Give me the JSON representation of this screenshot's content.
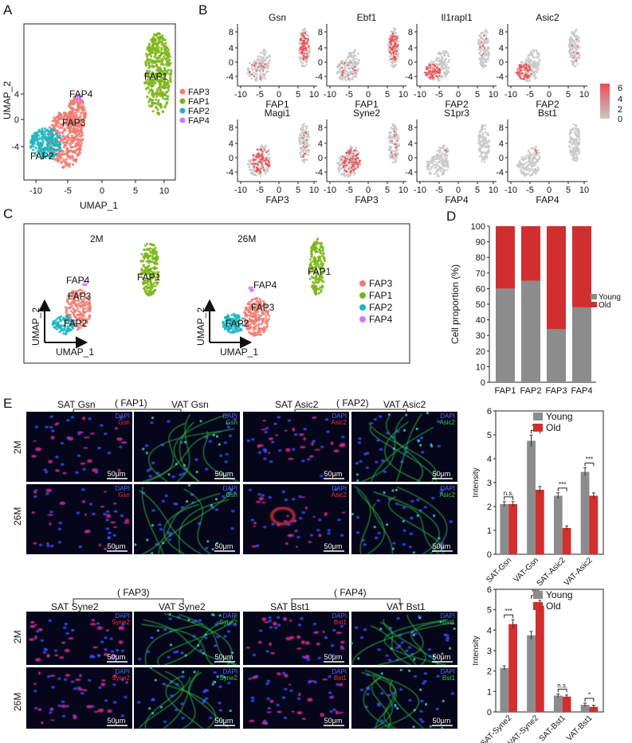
{
  "panels": {
    "A": "A",
    "B": "B",
    "C": "C",
    "D": "D",
    "E": "E"
  },
  "colors": {
    "FAP1": "#7cb518",
    "FAP2": "#1bb5be",
    "FAP3": "#f07b72",
    "FAP4": "#c77cff",
    "grey": "#c8c8c8",
    "express": "#f04b50",
    "young": "#8c8c8c",
    "old": "#d12f2f"
  },
  "panelA": {
    "xlabel": "UMAP_1",
    "ylabel": "UMAP_2",
    "xticks": [
      "-10",
      "-5",
      "0",
      "5",
      "10"
    ],
    "yticks": [
      "4",
      "0",
      "-4"
    ],
    "labels": [
      "FAP1",
      "FAP3",
      "FAP2",
      "FAP4"
    ],
    "legend": [
      "FAP3",
      "FAP1",
      "FAP2",
      "FAP4"
    ]
  },
  "panelB": {
    "genes": [
      {
        "name": "Gsn",
        "xlabel": "FAP1",
        "hot": "FAP1"
      },
      {
        "name": "Ebf1",
        "xlabel": "FAP1",
        "hot": "FAP1"
      },
      {
        "name": "Il1rapl1",
        "xlabel": "FAP2",
        "hot": "FAP2"
      },
      {
        "name": "Asic2",
        "xlabel": "FAP2",
        "hot": "FAP2"
      },
      {
        "name": "Magi1",
        "xlabel": "FAP3",
        "hot": "FAP3"
      },
      {
        "name": "Syne2",
        "xlabel": "FAP3",
        "hot": "FAP3"
      },
      {
        "name": "S1pr3",
        "xlabel": "FAP4",
        "hot": "none"
      },
      {
        "name": "Bst1",
        "xlabel": "FAP4",
        "hot": "none"
      }
    ],
    "xticks": [
      "-10",
      "-5",
      "0",
      "5",
      "10"
    ],
    "yticks": [
      "8",
      "4",
      "0",
      "-4"
    ],
    "colorbar": [
      "6",
      "4",
      "2",
      "0"
    ]
  },
  "panelC": {
    "groups": [
      "2M",
      "26M"
    ],
    "labels": [
      "FAP4",
      "FAP3",
      "FAP2",
      "FAP1"
    ],
    "legend": [
      "FAP3",
      "FAP1",
      "FAP2",
      "FAP4"
    ],
    "xlabel": "UMAP_1",
    "ylabel": "UMAP_2"
  },
  "panelE": {
    "row1_titles": [
      "( FAP1)",
      "( FAP2)"
    ],
    "row1_sub": [
      "SAT Gsn",
      "VAT Gsn",
      "SAT Asic2",
      "VAT Asic2"
    ],
    "row2_titles": [
      "( FAP3)",
      "( FAP4)"
    ],
    "row2_sub": [
      "SAT Syne2",
      "VAT Syne2",
      "SAT Bst1",
      "VAT Bst1"
    ],
    "ages": [
      "2M",
      "26M"
    ],
    "dapi": "DAPI",
    "markers_row1": [
      "Gsn",
      "Gsn",
      "Asic2",
      "Asic2"
    ],
    "markers_row2": [
      "Syne2",
      "Syne2",
      "Bst1",
      "Bst1"
    ],
    "scale": "50μm"
  },
  "chart_data": [
    {
      "type": "bar",
      "panel": "D",
      "categories": [
        "FAP1",
        "FAP2",
        "FAP3",
        "FAP4"
      ],
      "series": [
        {
          "name": "Young",
          "values": [
            60,
            65,
            34,
            48
          ]
        },
        {
          "name": "Old",
          "values": [
            40,
            35,
            66,
            52
          ]
        }
      ],
      "stacked": true,
      "ylabel": "Cell proportion (%)",
      "ylim": [
        0,
        100
      ],
      "yticks": [
        "0",
        "10",
        "20",
        "30",
        "40",
        "50",
        "60",
        "70",
        "80",
        "90",
        "100"
      ],
      "legend": "right"
    },
    {
      "type": "bar",
      "panel": "E-top",
      "categories": [
        "SAT-Gsn",
        "VAT-Gsn",
        "SAT-Asic2",
        "VAT-Asic2"
      ],
      "series": [
        {
          "name": "Young",
          "values": [
            2.1,
            4.75,
            2.45,
            3.45
          ]
        },
        {
          "name": "Old",
          "values": [
            2.1,
            2.7,
            1.1,
            2.45
          ]
        }
      ],
      "significance": [
        "n.s.",
        "***",
        "***",
        "***"
      ],
      "ylabel": "Intensity",
      "ylim": [
        0,
        6
      ],
      "yticks": [
        "0",
        "1",
        "2",
        "3",
        "4",
        "5",
        "6"
      ],
      "legend": "top-right"
    },
    {
      "type": "bar",
      "panel": "E-bottom",
      "categories": [
        "SAT-Syne2",
        "VAT-Syne2",
        "SAT-Bst1",
        "VAT-Bst1"
      ],
      "series": [
        {
          "name": "Young",
          "values": [
            2.15,
            3.75,
            0.8,
            0.35
          ]
        },
        {
          "name": "Old",
          "values": [
            4.3,
            5.2,
            0.75,
            0.25
          ]
        }
      ],
      "significance": [
        "***",
        "***",
        "n.s.",
        "*"
      ],
      "ylabel": "Intensity",
      "ylim": [
        0,
        6
      ],
      "yticks": [
        "0",
        "1",
        "2",
        "3",
        "4",
        "5",
        "6"
      ],
      "legend": "top-right"
    }
  ]
}
